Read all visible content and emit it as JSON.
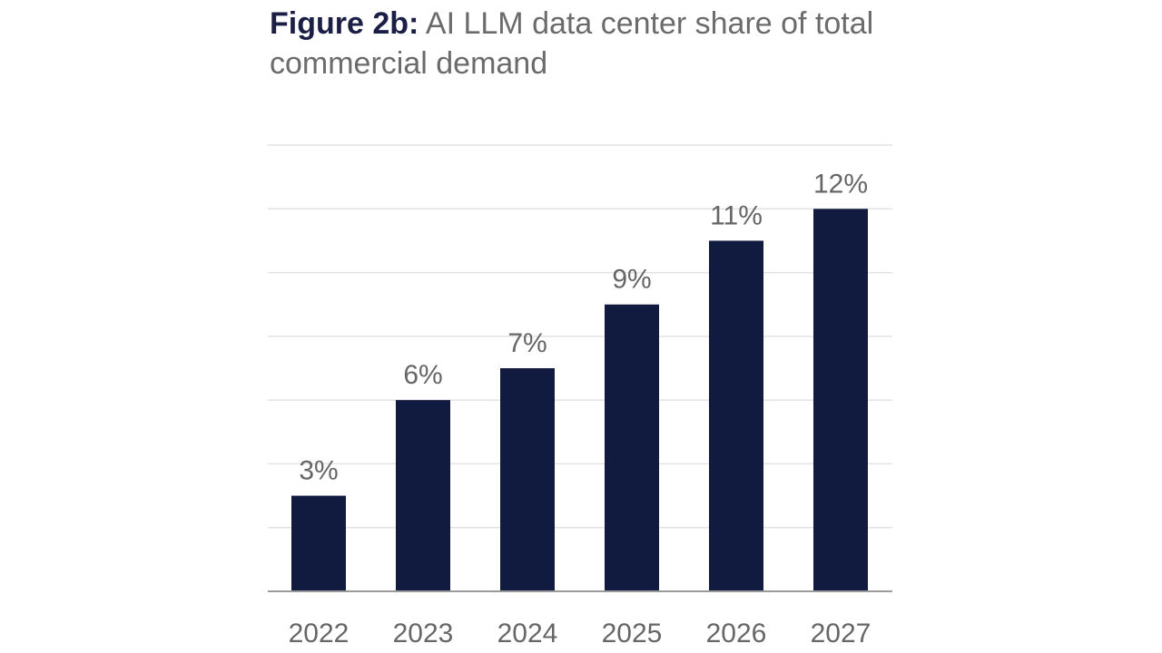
{
  "chart_data": {
    "type": "bar",
    "title_prefix": "Figure 2b:",
    "title": "AI LLM data center share of total commercial demand",
    "categories": [
      "2022",
      "2023",
      "2024",
      "2025",
      "2026",
      "2027"
    ],
    "values": [
      3,
      6,
      7,
      9,
      11,
      12
    ],
    "data_labels": [
      "3%",
      "6%",
      "7%",
      "9%",
      "11%",
      "12%"
    ],
    "unit": "%",
    "xlabel": "",
    "ylabel": "",
    "ylim": [
      0,
      14
    ],
    "grid": true,
    "grid_step": 2,
    "y_tick_labels_shown": false,
    "colors": {
      "bar": "#111a3f",
      "grid": "#e3e3e3",
      "axis": "#9a9a9a",
      "title_prefix": "#1b1f45",
      "text": "#666666"
    }
  }
}
